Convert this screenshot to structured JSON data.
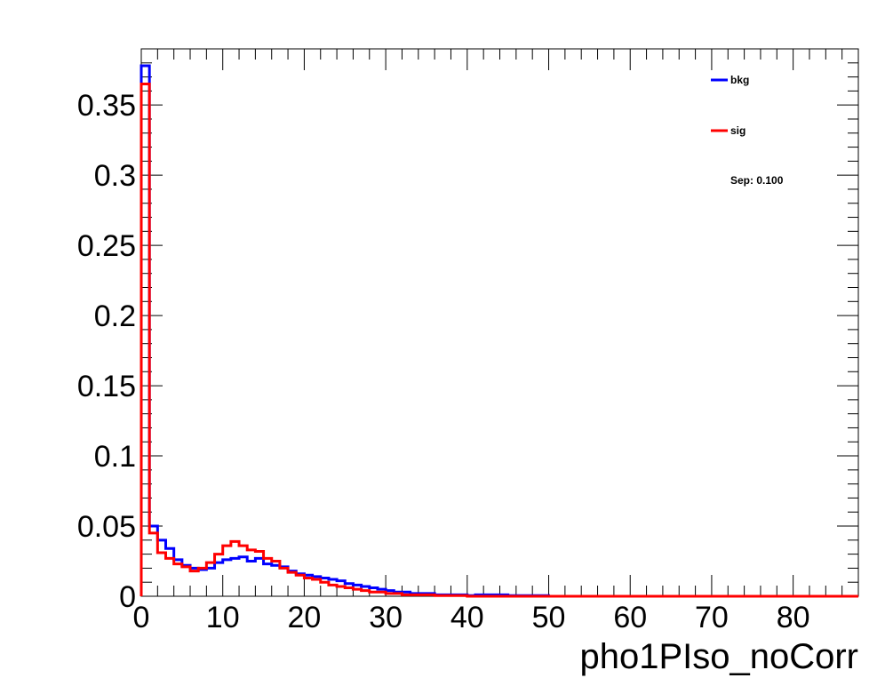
{
  "chart_data": {
    "type": "line",
    "title": "",
    "xlabel": "pho1PIso_noCorr",
    "ylabel": "",
    "xlim": [
      0,
      88
    ],
    "ylim": [
      0,
      0.39
    ],
    "x_ticks": [
      0,
      10,
      20,
      30,
      40,
      50,
      60,
      70,
      80
    ],
    "x_tick_labels": [
      "0",
      "10",
      "20",
      "30",
      "40",
      "50",
      "60",
      "70",
      "80"
    ],
    "y_ticks": [
      0,
      0.05,
      0.1,
      0.15,
      0.2,
      0.25,
      0.3,
      0.35
    ],
    "y_tick_labels": [
      "0",
      "0.05",
      "0.1",
      "0.15",
      "0.2",
      "0.25",
      "0.3",
      "0.35"
    ],
    "grid": false,
    "legend_position": "top-right",
    "annotation": "Sep: 0.100",
    "bin_width": 1,
    "series": [
      {
        "name": "bkg",
        "color": "#0000ff",
        "values": [
          0.378,
          0.05,
          0.04,
          0.034,
          0.026,
          0.022,
          0.02,
          0.019,
          0.02,
          0.024,
          0.026,
          0.027,
          0.028,
          0.025,
          0.027,
          0.023,
          0.022,
          0.021,
          0.018,
          0.016,
          0.015,
          0.014,
          0.013,
          0.012,
          0.011,
          0.009,
          0.008,
          0.007,
          0.006,
          0.005,
          0.004,
          0.003,
          0.003,
          0.002,
          0.002,
          0.002,
          0.001,
          0.001,
          0.001,
          0.001,
          0.0005,
          0.001,
          0.001,
          0.001,
          0.001,
          0.0005,
          0.0005,
          0.0005,
          0.0005,
          0.0005,
          0,
          0,
          0,
          0,
          0,
          0,
          0,
          0,
          0,
          0,
          0,
          0,
          0,
          0,
          0,
          0,
          0,
          0,
          0,
          0,
          0,
          0,
          0,
          0,
          0,
          0,
          0,
          0,
          0,
          0,
          0,
          0,
          0,
          0,
          0,
          0,
          0,
          0
        ]
      },
      {
        "name": "sig",
        "color": "#ff0000",
        "values": [
          0.365,
          0.045,
          0.031,
          0.027,
          0.023,
          0.021,
          0.018,
          0.02,
          0.024,
          0.03,
          0.036,
          0.039,
          0.036,
          0.033,
          0.032,
          0.027,
          0.025,
          0.02,
          0.017,
          0.015,
          0.013,
          0.012,
          0.01,
          0.008,
          0.007,
          0.006,
          0.005,
          0.004,
          0.003,
          0.003,
          0.002,
          0.002,
          0.001,
          0.001,
          0.001,
          0.001,
          0.0005,
          0.0005,
          0.0005,
          0.0005,
          0,
          0,
          0,
          0,
          0,
          0,
          0,
          0,
          0,
          0,
          0,
          0,
          0,
          0,
          0,
          0,
          0,
          0,
          0,
          0,
          0,
          0,
          0,
          0,
          0,
          0,
          0,
          0,
          0,
          0,
          0,
          0,
          0,
          0,
          0,
          0,
          0,
          0,
          0,
          0,
          0,
          0,
          0,
          0,
          0,
          0,
          0,
          0
        ]
      }
    ]
  }
}
